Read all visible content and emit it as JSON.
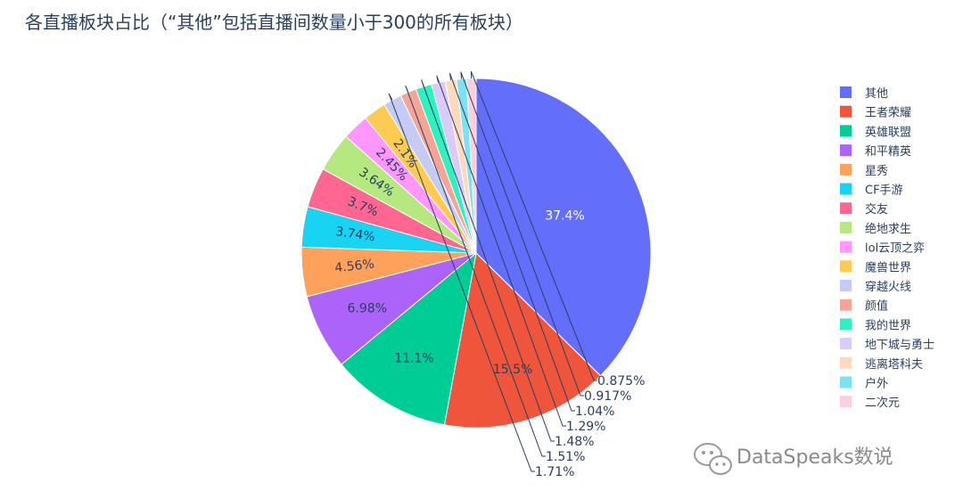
{
  "chart_data": {
    "type": "pie",
    "title": "各直播板块占比（“其他”包括直播间数量小于300的所有板块）",
    "direction": "clockwise",
    "sort": "descending",
    "categories": [
      "其他",
      "王者荣耀",
      "英雄联盟",
      "和平精英",
      "星秀",
      "CF手游",
      "交友",
      "绝地求生",
      "lol云顶之弈",
      "魔兽世界",
      "穿越火线",
      "颜值",
      "我的世界",
      "地下城与勇士",
      "逃离塔科夫",
      "户外",
      "二次元"
    ],
    "values": [
      37.4,
      15.5,
      11.1,
      6.98,
      4.56,
      3.74,
      3.7,
      3.64,
      2.45,
      2.1,
      1.71,
      1.51,
      1.48,
      1.29,
      1.04,
      0.917,
      0.875
    ],
    "labels": [
      "37.4%",
      "15.5%",
      "11.1%",
      "6.98%",
      "4.56%",
      "3.74%",
      "3.7%",
      "3.64%",
      "2.45%",
      "2.1%",
      "1.71%",
      "1.51%",
      "1.48%",
      "1.29%",
      "1.04%",
      "0.917%",
      "0.875%"
    ],
    "colors": [
      "#636efa",
      "#EF553B",
      "#00cc96",
      "#ab63fa",
      "#FFA15A",
      "#19d3f3",
      "#FF6692",
      "#B6E880",
      "#FF97FF",
      "#FECB52",
      "#c6cbf5",
      "#f4a598",
      "#2ff0c1",
      "#dccbfa",
      "#fddabd",
      "#79e2f5",
      "#fdcfdc"
    ],
    "label_position": [
      "inside",
      "inside",
      "inside",
      "inside",
      "inside",
      "inside",
      "inside",
      "inside",
      "inside",
      "inside",
      "outside",
      "outside",
      "outside",
      "outside",
      "outside",
      "outside",
      "outside"
    ],
    "legend_position": "right"
  },
  "watermark": {
    "text": "DataSpeaks数说",
    "icon": "wechat-icon"
  }
}
